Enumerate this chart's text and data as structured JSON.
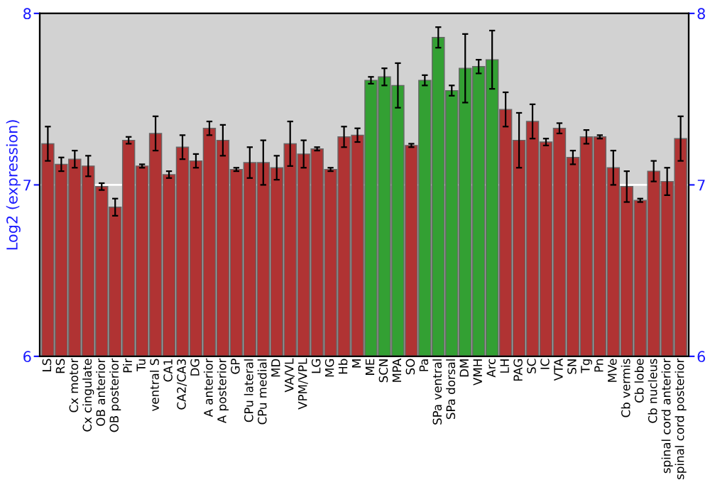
{
  "chart_data": {
    "type": "bar",
    "ylabel": "Log2 (expression)",
    "categories": [
      "LS",
      "RS",
      "Cx motor",
      "Cx cingulate",
      "OB anterior",
      "OB posterior",
      "Pir",
      "Tu",
      "ventral S",
      "CA1",
      "CA2/CA3",
      "DG",
      "A anterior",
      "A posterior",
      "GP",
      "CPu lateral",
      "CPu medial",
      "MD",
      "VA/VL",
      "VPM/VPL",
      "LG",
      "MG",
      "Hb",
      "M",
      "ME",
      "SCN",
      "MPA",
      "SO",
      "Pa",
      "SPa ventral",
      "SPa dorsal",
      "DM",
      "VMH",
      "Arc",
      "LH",
      "PAG",
      "SC",
      "IC",
      "VTA",
      "SN",
      "Tg",
      "Pn",
      "MVe",
      "Cb vermis",
      "Cb lobe",
      "Cb nucleus",
      "spinal cord anterior",
      "spinal cord posterior"
    ],
    "values": [
      7.24,
      7.12,
      7.15,
      7.11,
      6.99,
      6.87,
      7.26,
      7.11,
      7.3,
      7.06,
      7.22,
      7.14,
      7.33,
      7.26,
      7.09,
      7.13,
      7.13,
      7.1,
      7.24,
      7.18,
      7.21,
      7.09,
      7.28,
      7.29,
      7.61,
      7.63,
      7.58,
      7.23,
      7.61,
      7.86,
      7.55,
      7.68,
      7.69,
      7.73,
      7.44,
      7.26,
      7.37,
      7.25,
      7.33,
      7.16,
      7.28,
      7.28,
      7.1,
      6.99,
      6.91,
      7.08,
      7.02,
      7.27
    ],
    "errors": [
      0.1,
      0.04,
      0.05,
      0.06,
      0.02,
      0.05,
      0.02,
      0.01,
      0.1,
      0.02,
      0.07,
      0.04,
      0.04,
      0.09,
      0.01,
      0.09,
      0.13,
      0.07,
      0.13,
      0.08,
      0.01,
      0.01,
      0.06,
      0.04,
      0.02,
      0.05,
      0.13,
      0.01,
      0.03,
      0.06,
      0.03,
      0.2,
      0.04,
      0.17,
      0.1,
      0.16,
      0.1,
      0.02,
      0.03,
      0.04,
      0.04,
      0.01,
      0.1,
      0.09,
      0.01,
      0.06,
      0.08,
      0.13
    ],
    "colors": [
      "#b03333",
      "#b03333",
      "#b03333",
      "#b03333",
      "#b03333",
      "#b03333",
      "#b03333",
      "#b03333",
      "#b03333",
      "#b03333",
      "#b03333",
      "#b03333",
      "#b03333",
      "#b03333",
      "#b03333",
      "#b03333",
      "#b03333",
      "#b03333",
      "#b03333",
      "#b03333",
      "#b03333",
      "#b03333",
      "#b03333",
      "#b03333",
      "#33a033",
      "#33a033",
      "#33a033",
      "#b03333",
      "#33a033",
      "#33a033",
      "#33a033",
      "#33a033",
      "#33a033",
      "#33a033",
      "#b03333",
      "#b03333",
      "#b03333",
      "#b03333",
      "#b03333",
      "#b03333",
      "#b03333",
      "#b03333",
      "#b03333",
      "#b03333",
      "#b03333",
      "#b03333",
      "#b03333",
      "#b03333"
    ],
    "ylim": [
      6,
      8
    ],
    "yticks": [
      6,
      7,
      8
    ],
    "y2lim": [
      6,
      8
    ],
    "y2ticks": [
      6,
      7,
      8
    ],
    "ref_lines": [
      {
        "axis": "y",
        "value": 7,
        "color": "#ffffff"
      }
    ]
  }
}
